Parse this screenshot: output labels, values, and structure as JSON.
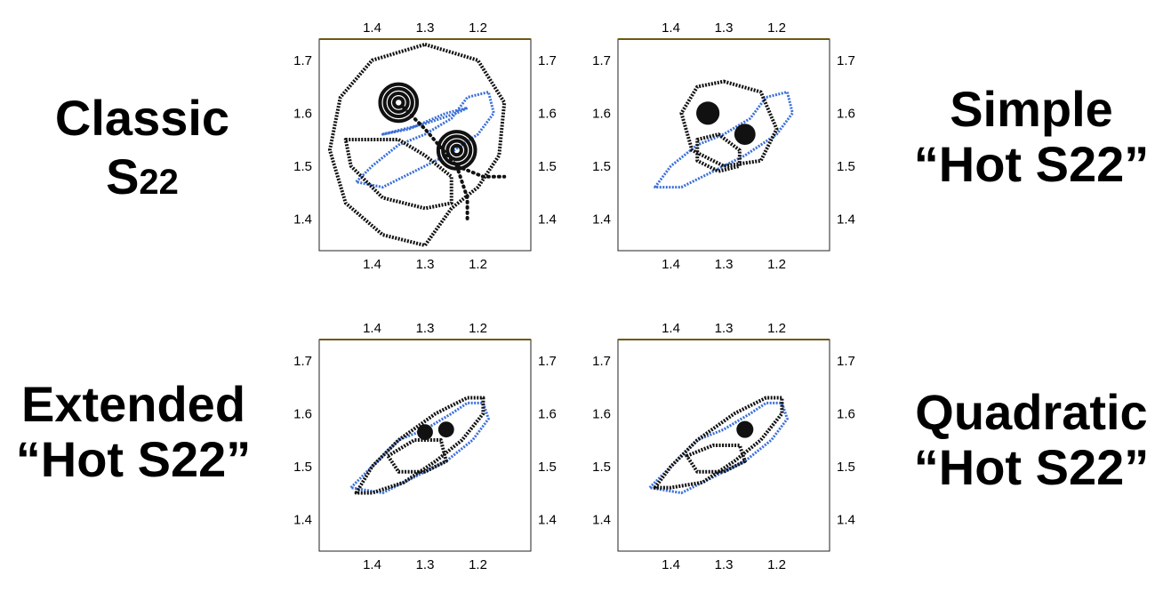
{
  "labels": {
    "tl": {
      "line1": "Classic",
      "line2_main": "S",
      "line2_sub": "22"
    },
    "tr": {
      "line1": "Simple",
      "line2": "“Hot S22”"
    },
    "bl": {
      "line1": "Extended",
      "line2": "“Hot S22”"
    },
    "br": {
      "line1": "Quadratic",
      "line2": "“Hot S22”"
    }
  },
  "colors": {
    "blue": "#3a6fd8",
    "black": "#111111",
    "frame_top": "#6b5a10"
  },
  "chart_data": [
    {
      "id": "classic",
      "type": "scatter",
      "title": "",
      "x_ticks": [
        "1.4",
        "1.3",
        "1.2"
      ],
      "x_tick_values": [
        1.4,
        1.3,
        1.2
      ],
      "y_ticks": [
        "1.7",
        "1.6",
        "1.5",
        "1.4"
      ],
      "y_tick_values": [
        1.7,
        1.6,
        1.5,
        1.4
      ],
      "xlim": [
        1.5,
        1.1
      ],
      "ylim": [
        1.34,
        1.74
      ],
      "grid": false,
      "series": [
        {
          "color": "blue",
          "style": "loop",
          "values": [
            [
              1.43,
              1.47
            ],
            [
              1.4,
              1.5
            ],
            [
              1.35,
              1.54
            ],
            [
              1.3,
              1.56
            ],
            [
              1.25,
              1.59
            ],
            [
              1.22,
              1.63
            ],
            [
              1.18,
              1.64
            ],
            [
              1.17,
              1.6
            ],
            [
              1.2,
              1.56
            ],
            [
              1.26,
              1.52
            ],
            [
              1.32,
              1.49
            ],
            [
              1.38,
              1.46
            ],
            [
              1.43,
              1.47
            ]
          ]
        },
        {
          "color": "blue",
          "style": "loop",
          "values": [
            [
              1.38,
              1.56
            ],
            [
              1.3,
              1.58
            ],
            [
              1.24,
              1.6
            ],
            [
              1.22,
              1.61
            ],
            [
              1.26,
              1.6
            ],
            [
              1.33,
              1.57
            ],
            [
              1.38,
              1.56
            ]
          ]
        },
        {
          "color": "black",
          "style": "loop",
          "values": [
            [
              1.3,
              1.73
            ],
            [
              1.2,
              1.7
            ],
            [
              1.15,
              1.62
            ],
            [
              1.16,
              1.52
            ],
            [
              1.2,
              1.46
            ],
            [
              1.25,
              1.42
            ],
            [
              1.3,
              1.35
            ],
            [
              1.38,
              1.37
            ],
            [
              1.45,
              1.43
            ],
            [
              1.48,
              1.53
            ],
            [
              1.46,
              1.63
            ],
            [
              1.4,
              1.7
            ],
            [
              1.3,
              1.73
            ]
          ]
        },
        {
          "color": "black",
          "style": "loop",
          "values": [
            [
              1.45,
              1.55
            ],
            [
              1.35,
              1.55
            ],
            [
              1.3,
              1.52
            ],
            [
              1.25,
              1.48
            ],
            [
              1.25,
              1.43
            ],
            [
              1.3,
              1.42
            ],
            [
              1.38,
              1.44
            ],
            [
              1.44,
              1.5
            ],
            [
              1.45,
              1.55
            ]
          ]
        },
        {
          "color": "black",
          "style": "dotted",
          "values": [
            [
              1.34,
              1.61
            ],
            [
              1.3,
              1.57
            ],
            [
              1.24,
              1.5
            ],
            [
              1.19,
              1.48
            ],
            [
              1.15,
              1.48
            ]
          ]
        },
        {
          "color": "black",
          "style": "dotted",
          "values": [
            [
              1.24,
              1.5
            ],
            [
              1.22,
              1.44
            ],
            [
              1.22,
              1.4
            ]
          ]
        }
      ],
      "rings": [
        {
          "x": 1.35,
          "y": 1.62,
          "r": 0.035
        },
        {
          "x": 1.24,
          "y": 1.53,
          "r": 0.035
        }
      ],
      "dots": []
    },
    {
      "id": "simple",
      "type": "scatter",
      "title": "",
      "x_ticks": [
        "1.4",
        "1.3",
        "1.2"
      ],
      "x_tick_values": [
        1.4,
        1.3,
        1.2
      ],
      "y_ticks": [
        "1.7",
        "1.6",
        "1.5",
        "1.4"
      ],
      "y_tick_values": [
        1.7,
        1.6,
        1.5,
        1.4
      ],
      "xlim": [
        1.5,
        1.1
      ],
      "ylim": [
        1.34,
        1.74
      ],
      "grid": false,
      "series": [
        {
          "color": "blue",
          "style": "loop",
          "values": [
            [
              1.43,
              1.46
            ],
            [
              1.4,
              1.5
            ],
            [
              1.35,
              1.54
            ],
            [
              1.3,
              1.56
            ],
            [
              1.25,
              1.59
            ],
            [
              1.22,
              1.63
            ],
            [
              1.18,
              1.64
            ],
            [
              1.17,
              1.6
            ],
            [
              1.2,
              1.56
            ],
            [
              1.26,
              1.52
            ],
            [
              1.32,
              1.49
            ],
            [
              1.38,
              1.46
            ],
            [
              1.43,
              1.46
            ]
          ]
        },
        {
          "color": "black",
          "style": "loop",
          "values": [
            [
              1.3,
              1.66
            ],
            [
              1.23,
              1.64
            ],
            [
              1.2,
              1.57
            ],
            [
              1.23,
              1.51
            ],
            [
              1.3,
              1.5
            ],
            [
              1.36,
              1.53
            ],
            [
              1.38,
              1.6
            ],
            [
              1.35,
              1.65
            ],
            [
              1.3,
              1.66
            ]
          ]
        },
        {
          "color": "black",
          "style": "loop",
          "values": [
            [
              1.35,
              1.55
            ],
            [
              1.31,
              1.56
            ],
            [
              1.27,
              1.53
            ],
            [
              1.27,
              1.5
            ],
            [
              1.31,
              1.49
            ],
            [
              1.35,
              1.51
            ],
            [
              1.35,
              1.55
            ]
          ]
        }
      ],
      "rings": [],
      "dots": [
        {
          "x": 1.33,
          "y": 1.6,
          "r": 0.022
        },
        {
          "x": 1.26,
          "y": 1.56,
          "r": 0.02
        }
      ]
    },
    {
      "id": "extended",
      "type": "scatter",
      "title": "",
      "x_ticks": [
        "1.4",
        "1.3",
        "1.2"
      ],
      "x_tick_values": [
        1.4,
        1.3,
        1.2
      ],
      "y_ticks": [
        "1.7",
        "1.6",
        "1.5",
        "1.4"
      ],
      "y_tick_values": [
        1.7,
        1.6,
        1.5,
        1.4
      ],
      "xlim": [
        1.5,
        1.1
      ],
      "ylim": [
        1.34,
        1.74
      ],
      "grid": false,
      "series": [
        {
          "color": "blue",
          "style": "loop",
          "values": [
            [
              1.44,
              1.46
            ],
            [
              1.4,
              1.5
            ],
            [
              1.35,
              1.55
            ],
            [
              1.3,
              1.57
            ],
            [
              1.25,
              1.6
            ],
            [
              1.22,
              1.62
            ],
            [
              1.19,
              1.62
            ],
            [
              1.18,
              1.59
            ],
            [
              1.21,
              1.55
            ],
            [
              1.26,
              1.51
            ],
            [
              1.32,
              1.48
            ],
            [
              1.38,
              1.45
            ],
            [
              1.44,
              1.46
            ]
          ]
        },
        {
          "color": "black",
          "style": "loop",
          "values": [
            [
              1.43,
              1.45
            ],
            [
              1.4,
              1.5
            ],
            [
              1.35,
              1.55
            ],
            [
              1.28,
              1.6
            ],
            [
              1.22,
              1.63
            ],
            [
              1.19,
              1.63
            ],
            [
              1.19,
              1.6
            ],
            [
              1.23,
              1.55
            ],
            [
              1.28,
              1.51
            ],
            [
              1.34,
              1.47
            ],
            [
              1.4,
              1.45
            ],
            [
              1.43,
              1.45
            ]
          ]
        },
        {
          "color": "black",
          "style": "loop",
          "values": [
            [
              1.37,
              1.52
            ],
            [
              1.32,
              1.55
            ],
            [
              1.27,
              1.55
            ],
            [
              1.26,
              1.51
            ],
            [
              1.3,
              1.49
            ],
            [
              1.35,
              1.49
            ],
            [
              1.37,
              1.52
            ]
          ]
        }
      ],
      "rings": [],
      "dots": [
        {
          "x": 1.3,
          "y": 1.565,
          "r": 0.015
        },
        {
          "x": 1.26,
          "y": 1.57,
          "r": 0.015
        }
      ]
    },
    {
      "id": "quadratic",
      "type": "scatter",
      "title": "",
      "x_ticks": [
        "1.4",
        "1.3",
        "1.2"
      ],
      "x_tick_values": [
        1.4,
        1.3,
        1.2
      ],
      "y_ticks": [
        "1.7",
        "1.6",
        "1.5",
        "1.4"
      ],
      "y_tick_values": [
        1.7,
        1.6,
        1.5,
        1.4
      ],
      "xlim": [
        1.5,
        1.1
      ],
      "ylim": [
        1.34,
        1.74
      ],
      "grid": false,
      "series": [
        {
          "color": "blue",
          "style": "loop",
          "values": [
            [
              1.44,
              1.46
            ],
            [
              1.4,
              1.5
            ],
            [
              1.35,
              1.55
            ],
            [
              1.3,
              1.57
            ],
            [
              1.25,
              1.6
            ],
            [
              1.22,
              1.62
            ],
            [
              1.19,
              1.62
            ],
            [
              1.18,
              1.59
            ],
            [
              1.21,
              1.55
            ],
            [
              1.26,
              1.51
            ],
            [
              1.32,
              1.48
            ],
            [
              1.38,
              1.45
            ],
            [
              1.44,
              1.46
            ]
          ]
        },
        {
          "color": "black",
          "style": "loop",
          "values": [
            [
              1.43,
              1.46
            ],
            [
              1.4,
              1.5
            ],
            [
              1.35,
              1.55
            ],
            [
              1.28,
              1.6
            ],
            [
              1.22,
              1.63
            ],
            [
              1.19,
              1.63
            ],
            [
              1.19,
              1.6
            ],
            [
              1.23,
              1.55
            ],
            [
              1.28,
              1.51
            ],
            [
              1.34,
              1.47
            ],
            [
              1.4,
              1.46
            ],
            [
              1.43,
              1.46
            ]
          ]
        },
        {
          "color": "black",
          "style": "loop",
          "values": [
            [
              1.37,
              1.52
            ],
            [
              1.32,
              1.54
            ],
            [
              1.27,
              1.54
            ],
            [
              1.26,
              1.51
            ],
            [
              1.3,
              1.49
            ],
            [
              1.35,
              1.49
            ],
            [
              1.37,
              1.52
            ]
          ]
        }
      ],
      "rings": [],
      "dots": [
        {
          "x": 1.26,
          "y": 1.57,
          "r": 0.016
        }
      ]
    }
  ]
}
